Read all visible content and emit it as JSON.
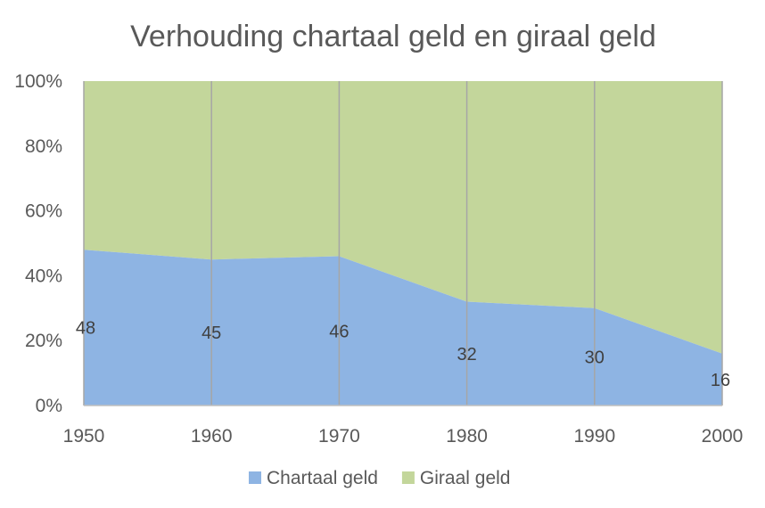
{
  "chart_data": {
    "type": "area",
    "stacking": "percent",
    "title": "Verhouding chartaal geld en giraal geld",
    "x": [
      "1950",
      "1960",
      "1970",
      "1980",
      "1990",
      "2000"
    ],
    "series": [
      {
        "name": "Chartaal geld",
        "values": [
          48,
          45,
          46,
          32,
          30,
          16
        ],
        "color": "#8EB4E3"
      },
      {
        "name": "Giraal geld",
        "values": [
          52,
          55,
          54,
          68,
          70,
          84
        ],
        "color": "#C3D69B"
      }
    ],
    "data_labels": [
      "48",
      "45",
      "46",
      "32",
      "30",
      "16"
    ],
    "y_ticks": [
      "0%",
      "20%",
      "40%",
      "60%",
      "80%",
      "100%"
    ],
    "ylim": [
      0,
      100
    ],
    "grid": "vertical",
    "legend": "bottom"
  }
}
